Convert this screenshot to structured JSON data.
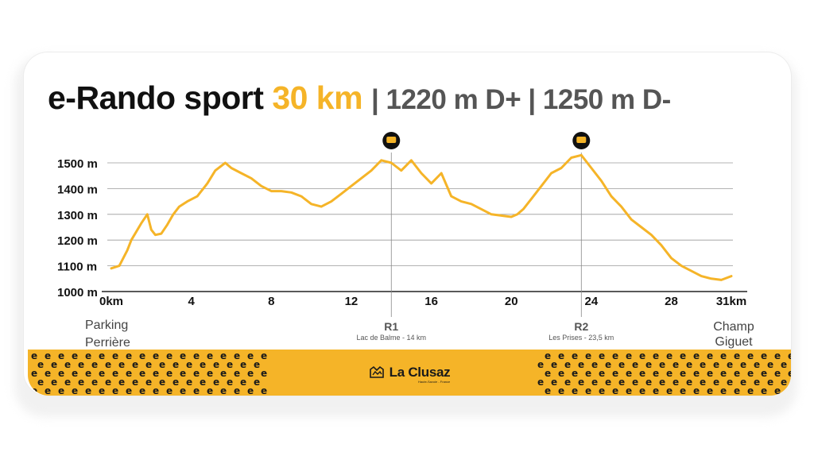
{
  "title": {
    "name": "e-Rando sport",
    "distance": "30 km",
    "stats": "| 1220 m D+ | 1250 m D-"
  },
  "chart_data": {
    "type": "area",
    "xlabel": "",
    "ylabel": "",
    "xlim": [
      0,
      31
    ],
    "ylim": [
      1000,
      1500
    ],
    "x_ticks": [
      "0km",
      "4",
      "8",
      "12",
      "16",
      "20",
      "24",
      "28",
      "31km"
    ],
    "x_tick_values": [
      0,
      4,
      8,
      12,
      16,
      20,
      24,
      28,
      31
    ],
    "y_ticks": [
      "1000 m",
      "1100 m",
      "1200 m",
      "1300 m",
      "1400 m",
      "1500 m"
    ],
    "y_tick_values": [
      1000,
      1100,
      1200,
      1300,
      1400,
      1500
    ],
    "grid": true,
    "line_color": "#F5B428",
    "series": [
      {
        "x": [
          0,
          0.4,
          0.8,
          1.0,
          1.5,
          1.8,
          2.0,
          2.2,
          2.5,
          2.8,
          3.1,
          3.4,
          3.8,
          4.3,
          4.8,
          5.2,
          5.7,
          6.0,
          6.5,
          7.0,
          7.5,
          8.0,
          8.5,
          9.0,
          9.5,
          10.0,
          10.5,
          11.0,
          11.5,
          12.0,
          12.5,
          13.0,
          13.5,
          14.0,
          14.5,
          15.0,
          15.5,
          16.0,
          16.5,
          17.0,
          17.5,
          18.0,
          18.5,
          19.0,
          19.5,
          20.0,
          20.3,
          20.6,
          21.0,
          21.5,
          22.0,
          22.5,
          23.0,
          23.5,
          24.0,
          24.5,
          25.0,
          25.5,
          26.0,
          26.5,
          27.0,
          27.5,
          28.0,
          28.5,
          29.0,
          29.5,
          30.0,
          30.5,
          31.0
        ],
        "values": [
          1090,
          1100,
          1160,
          1200,
          1265,
          1300,
          1240,
          1220,
          1225,
          1260,
          1300,
          1330,
          1350,
          1370,
          1420,
          1470,
          1500,
          1480,
          1460,
          1440,
          1410,
          1390,
          1390,
          1385,
          1370,
          1340,
          1330,
          1350,
          1380,
          1410,
          1440,
          1470,
          1510,
          1500,
          1470,
          1510,
          1460,
          1420,
          1460,
          1370,
          1350,
          1340,
          1320,
          1300,
          1295,
          1290,
          1300,
          1320,
          1360,
          1410,
          1460,
          1480,
          1520,
          1530,
          1480,
          1430,
          1370,
          1330,
          1280,
          1250,
          1220,
          1180,
          1130,
          1100,
          1080,
          1060,
          1050,
          1045,
          1060
        ]
      }
    ],
    "refuels": [
      {
        "label": "R1",
        "description": "Lac de Balme - 14 km",
        "x": 14
      },
      {
        "label": "R2",
        "description": "Les Prises - 23,5 km",
        "x": 23.5
      }
    ],
    "start": {
      "line1": "Parking",
      "line2": "Perrière"
    },
    "end": {
      "line1": "Champ",
      "line2": "Giguet"
    }
  },
  "footer": {
    "brand": "La Clusaz",
    "tagline": "Haute-Savoie - France",
    "pattern_glyph": "e",
    "background_color": "#F5B428",
    "glyph_color": "#1a1a1a"
  }
}
